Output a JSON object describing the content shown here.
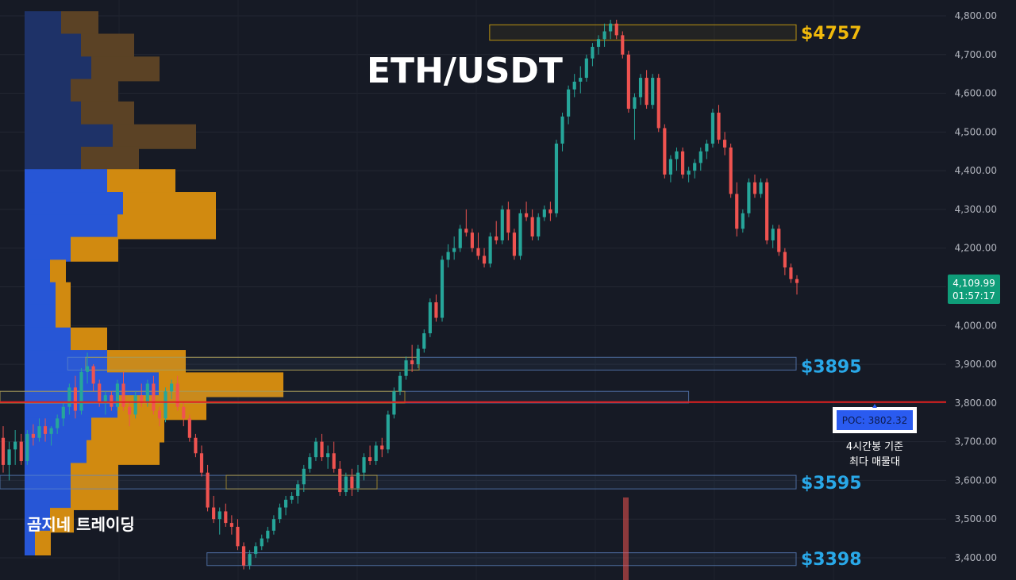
{
  "chart_data": {
    "type": "candlestick",
    "title": "ETH/USDT",
    "watermark": "곰지네 트레이딩",
    "timeframe_note": "4시간봉",
    "ylim": [
      3360,
      4830
    ],
    "yticks": [
      "4,800.00",
      "4,700.00",
      "4,600.00",
      "4,500.00",
      "4,400.00",
      "4,300.00",
      "4,200.00",
      "4,100.00",
      "4,000.00",
      "3,900.00",
      "3,800.00",
      "3,700.00",
      "3,600.00",
      "3,500.00",
      "3,400.00"
    ],
    "ytick_values": [
      4800,
      4700,
      4600,
      4500,
      4400,
      4300,
      4200,
      4100,
      4000,
      3900,
      3800,
      3700,
      3600,
      3500,
      3400
    ],
    "last_price": 4109.99,
    "last_price_label": "4,109.99",
    "countdown": "01:57:17",
    "poc": 3802.32,
    "poc_label": "POC: 3802.32",
    "poc_note_1": "4시간봉 기준",
    "poc_note_2": "최다 매물대",
    "levels": [
      {
        "label": "$4757",
        "value": 4757,
        "color": "#f0b90b"
      },
      {
        "label": "$3895",
        "value": 3895,
        "color": "#29a8e8"
      },
      {
        "label": "$3595",
        "value": 3595,
        "color": "#29a8e8"
      },
      {
        "label": "$3398",
        "value": 3398,
        "color": "#29a8e8"
      }
    ],
    "zones": [
      {
        "from": 4737,
        "to": 4777,
        "color": "#f0b90b",
        "start": 0.615
      },
      {
        "from": 3885,
        "to": 3918,
        "color": "#5f87c7",
        "start": 0.085
      },
      {
        "from": 3800,
        "to": 3830,
        "color": "#5f87c7",
        "start": 0.0,
        "end": 0.865
      },
      {
        "from": 3578,
        "to": 3613,
        "color": "#5f87c7",
        "start": 0.0
      },
      {
        "from": 3380,
        "to": 3413,
        "color": "#5f87c7",
        "start": 0.26
      }
    ],
    "volume_profile": [
      {
        "price": 4780,
        "buy": 46,
        "sell": 47,
        "active": false
      },
      {
        "price": 4722,
        "buy": 71,
        "sell": 67,
        "active": false
      },
      {
        "price": 4663,
        "buy": 84,
        "sell": 86,
        "active": false
      },
      {
        "price": 4605,
        "buy": 58,
        "sell": 60,
        "active": false
      },
      {
        "price": 4547,
        "buy": 71,
        "sell": 67,
        "active": false
      },
      {
        "price": 4488,
        "buy": 111,
        "sell": 105,
        "active": false
      },
      {
        "price": 4430,
        "buy": 71,
        "sell": 73,
        "active": false
      },
      {
        "price": 4372,
        "buy": 104,
        "sell": 86,
        "active": true
      },
      {
        "price": 4313,
        "buy": 124,
        "sell": 117,
        "active": true
      },
      {
        "price": 4255,
        "buy": 117,
        "sell": 124,
        "active": true
      },
      {
        "price": 4197,
        "buy": 58,
        "sell": 60,
        "active": true
      },
      {
        "price": 4138,
        "buy": 32,
        "sell": 20,
        "active": true
      },
      {
        "price": 4080,
        "buy": 39,
        "sell": 19,
        "active": true
      },
      {
        "price": 4022,
        "buy": 39,
        "sell": 19,
        "active": true
      },
      {
        "price": 3963,
        "buy": 58,
        "sell": 46,
        "active": true
      },
      {
        "price": 3905,
        "buy": 104,
        "sell": 99,
        "active": true
      },
      {
        "price": 3847,
        "buy": 169,
        "sell": 157,
        "active": true
      },
      {
        "price": 3788,
        "buy": 117,
        "sell": 112,
        "active": true
      },
      {
        "price": 3730,
        "buy": 84,
        "sell": 92,
        "active": true
      },
      {
        "price": 3672,
        "buy": 78,
        "sell": 92,
        "active": true
      },
      {
        "price": 3613,
        "buy": 58,
        "sell": 60,
        "active": true
      },
      {
        "price": 3555,
        "buy": 58,
        "sell": 60,
        "active": true
      },
      {
        "price": 3497,
        "buy": 32,
        "sell": 30,
        "active": true
      },
      {
        "price": 3438,
        "buy": 13,
        "sell": 20,
        "active": true
      }
    ],
    "candles": [
      [
        3710,
        3740,
        3620,
        3640
      ],
      [
        3640,
        3700,
        3600,
        3680
      ],
      [
        3680,
        3730,
        3640,
        3700
      ],
      [
        3700,
        3720,
        3640,
        3650
      ],
      [
        3650,
        3730,
        3640,
        3720
      ],
      [
        3720,
        3745,
        3690,
        3710
      ],
      [
        3710,
        3760,
        3700,
        3740
      ],
      [
        3740,
        3760,
        3700,
        3720
      ],
      [
        3720,
        3740,
        3690,
        3735
      ],
      [
        3735,
        3770,
        3720,
        3760
      ],
      [
        3760,
        3800,
        3740,
        3790
      ],
      [
        3790,
        3850,
        3770,
        3840
      ],
      [
        3840,
        3870,
        3760,
        3780
      ],
      [
        3780,
        3890,
        3770,
        3880
      ],
      [
        3880,
        3930,
        3850,
        3895
      ],
      [
        3895,
        3900,
        3830,
        3850
      ],
      [
        3850,
        3860,
        3790,
        3800
      ],
      [
        3800,
        3830,
        3770,
        3820
      ],
      [
        3820,
        3830,
        3780,
        3790
      ],
      [
        3790,
        3860,
        3780,
        3850
      ],
      [
        3850,
        3880,
        3780,
        3790
      ],
      [
        3790,
        3800,
        3740,
        3770
      ],
      [
        3770,
        3830,
        3760,
        3820
      ],
      [
        3820,
        3850,
        3790,
        3800
      ],
      [
        3800,
        3860,
        3790,
        3850
      ],
      [
        3850,
        3870,
        3770,
        3780
      ],
      [
        3780,
        3790,
        3740,
        3760
      ],
      [
        3760,
        3840,
        3750,
        3830
      ],
      [
        3830,
        3860,
        3810,
        3850
      ],
      [
        3850,
        3870,
        3780,
        3790
      ],
      [
        3790,
        3800,
        3740,
        3760
      ],
      [
        3760,
        3770,
        3700,
        3710
      ],
      [
        3710,
        3720,
        3660,
        3670
      ],
      [
        3670,
        3690,
        3610,
        3620
      ],
      [
        3620,
        3640,
        3520,
        3530
      ],
      [
        3530,
        3560,
        3490,
        3500
      ],
      [
        3500,
        3530,
        3460,
        3520
      ],
      [
        3520,
        3540,
        3480,
        3490
      ],
      [
        3490,
        3510,
        3460,
        3480
      ],
      [
        3480,
        3500,
        3420,
        3430
      ],
      [
        3430,
        3440,
        3370,
        3380
      ],
      [
        3380,
        3420,
        3370,
        3410
      ],
      [
        3410,
        3440,
        3400,
        3430
      ],
      [
        3430,
        3460,
        3420,
        3450
      ],
      [
        3450,
        3480,
        3440,
        3470
      ],
      [
        3470,
        3510,
        3460,
        3500
      ],
      [
        3500,
        3540,
        3490,
        3530
      ],
      [
        3530,
        3560,
        3510,
        3550
      ],
      [
        3550,
        3570,
        3540,
        3560
      ],
      [
        3560,
        3600,
        3540,
        3590
      ],
      [
        3590,
        3640,
        3570,
        3630
      ],
      [
        3630,
        3670,
        3620,
        3660
      ],
      [
        3660,
        3710,
        3650,
        3700
      ],
      [
        3700,
        3720,
        3650,
        3660
      ],
      [
        3660,
        3690,
        3630,
        3670
      ],
      [
        3670,
        3700,
        3620,
        3630
      ],
      [
        3630,
        3650,
        3560,
        3570
      ],
      [
        3570,
        3620,
        3560,
        3610
      ],
      [
        3610,
        3630,
        3560,
        3580
      ],
      [
        3580,
        3640,
        3570,
        3620
      ],
      [
        3620,
        3670,
        3600,
        3660
      ],
      [
        3660,
        3690,
        3640,
        3650
      ],
      [
        3650,
        3700,
        3640,
        3690
      ],
      [
        3690,
        3710,
        3660,
        3680
      ],
      [
        3680,
        3780,
        3670,
        3770
      ],
      [
        3770,
        3840,
        3760,
        3830
      ],
      [
        3830,
        3880,
        3820,
        3870
      ],
      [
        3870,
        3920,
        3860,
        3910
      ],
      [
        3910,
        3950,
        3880,
        3900
      ],
      [
        3900,
        3950,
        3890,
        3940
      ],
      [
        3940,
        3990,
        3930,
        3980
      ],
      [
        3980,
        4070,
        3970,
        4060
      ],
      [
        4060,
        4080,
        4010,
        4020
      ],
      [
        4020,
        4180,
        4010,
        4170
      ],
      [
        4170,
        4210,
        4150,
        4190
      ],
      [
        4190,
        4230,
        4170,
        4200
      ],
      [
        4200,
        4260,
        4190,
        4250
      ],
      [
        4250,
        4300,
        4230,
        4240
      ],
      [
        4240,
        4250,
        4190,
        4200
      ],
      [
        4200,
        4240,
        4170,
        4180
      ],
      [
        4180,
        4200,
        4150,
        4160
      ],
      [
        4160,
        4240,
        4150,
        4230
      ],
      [
        4230,
        4270,
        4210,
        4220
      ],
      [
        4220,
        4310,
        4210,
        4300
      ],
      [
        4300,
        4320,
        4220,
        4240
      ],
      [
        4240,
        4250,
        4170,
        4180
      ],
      [
        4180,
        4300,
        4170,
        4290
      ],
      [
        4290,
        4320,
        4270,
        4280
      ],
      [
        4280,
        4300,
        4220,
        4230
      ],
      [
        4230,
        4290,
        4220,
        4280
      ],
      [
        4280,
        4310,
        4270,
        4300
      ],
      [
        4300,
        4320,
        4270,
        4290
      ],
      [
        4290,
        4480,
        4280,
        4470
      ],
      [
        4470,
        4550,
        4450,
        4540
      ],
      [
        4540,
        4620,
        4520,
        4610
      ],
      [
        4610,
        4650,
        4590,
        4630
      ],
      [
        4630,
        4670,
        4600,
        4640
      ],
      [
        4640,
        4700,
        4630,
        4690
      ],
      [
        4690,
        4730,
        4670,
        4720
      ],
      [
        4720,
        4750,
        4700,
        4740
      ],
      [
        4740,
        4780,
        4720,
        4760
      ],
      [
        4760,
        4790,
        4740,
        4780
      ],
      [
        4780,
        4790,
        4740,
        4750
      ],
      [
        4750,
        4760,
        4690,
        4700
      ],
      [
        4700,
        4710,
        4550,
        4560
      ],
      [
        4560,
        4600,
        4480,
        4590
      ],
      [
        4590,
        4650,
        4570,
        4640
      ],
      [
        4640,
        4660,
        4560,
        4570
      ],
      [
        4570,
        4650,
        4560,
        4640
      ],
      [
        4640,
        4650,
        4500,
        4510
      ],
      [
        4510,
        4520,
        4380,
        4390
      ],
      [
        4390,
        4440,
        4370,
        4430
      ],
      [
        4430,
        4460,
        4400,
        4450
      ],
      [
        4450,
        4460,
        4380,
        4390
      ],
      [
        4390,
        4410,
        4370,
        4400
      ],
      [
        4400,
        4430,
        4380,
        4420
      ],
      [
        4420,
        4460,
        4400,
        4450
      ],
      [
        4450,
        4480,
        4430,
        4470
      ],
      [
        4470,
        4560,
        4460,
        4550
      ],
      [
        4550,
        4570,
        4470,
        4480
      ],
      [
        4480,
        4500,
        4440,
        4460
      ],
      [
        4460,
        4470,
        4330,
        4340
      ],
      [
        4340,
        4370,
        4230,
        4250
      ],
      [
        4250,
        4300,
        4240,
        4290
      ],
      [
        4290,
        4380,
        4280,
        4370
      ],
      [
        4370,
        4390,
        4330,
        4340
      ],
      [
        4340,
        4380,
        4330,
        4370
      ],
      [
        4370,
        4380,
        4210,
        4220
      ],
      [
        4220,
        4260,
        4200,
        4250
      ],
      [
        4250,
        4260,
        4180,
        4190
      ],
      [
        4190,
        4200,
        4130,
        4150
      ],
      [
        4150,
        4160,
        4110,
        4120
      ],
      [
        4120,
        4130,
        4080,
        4110
      ]
    ]
  }
}
